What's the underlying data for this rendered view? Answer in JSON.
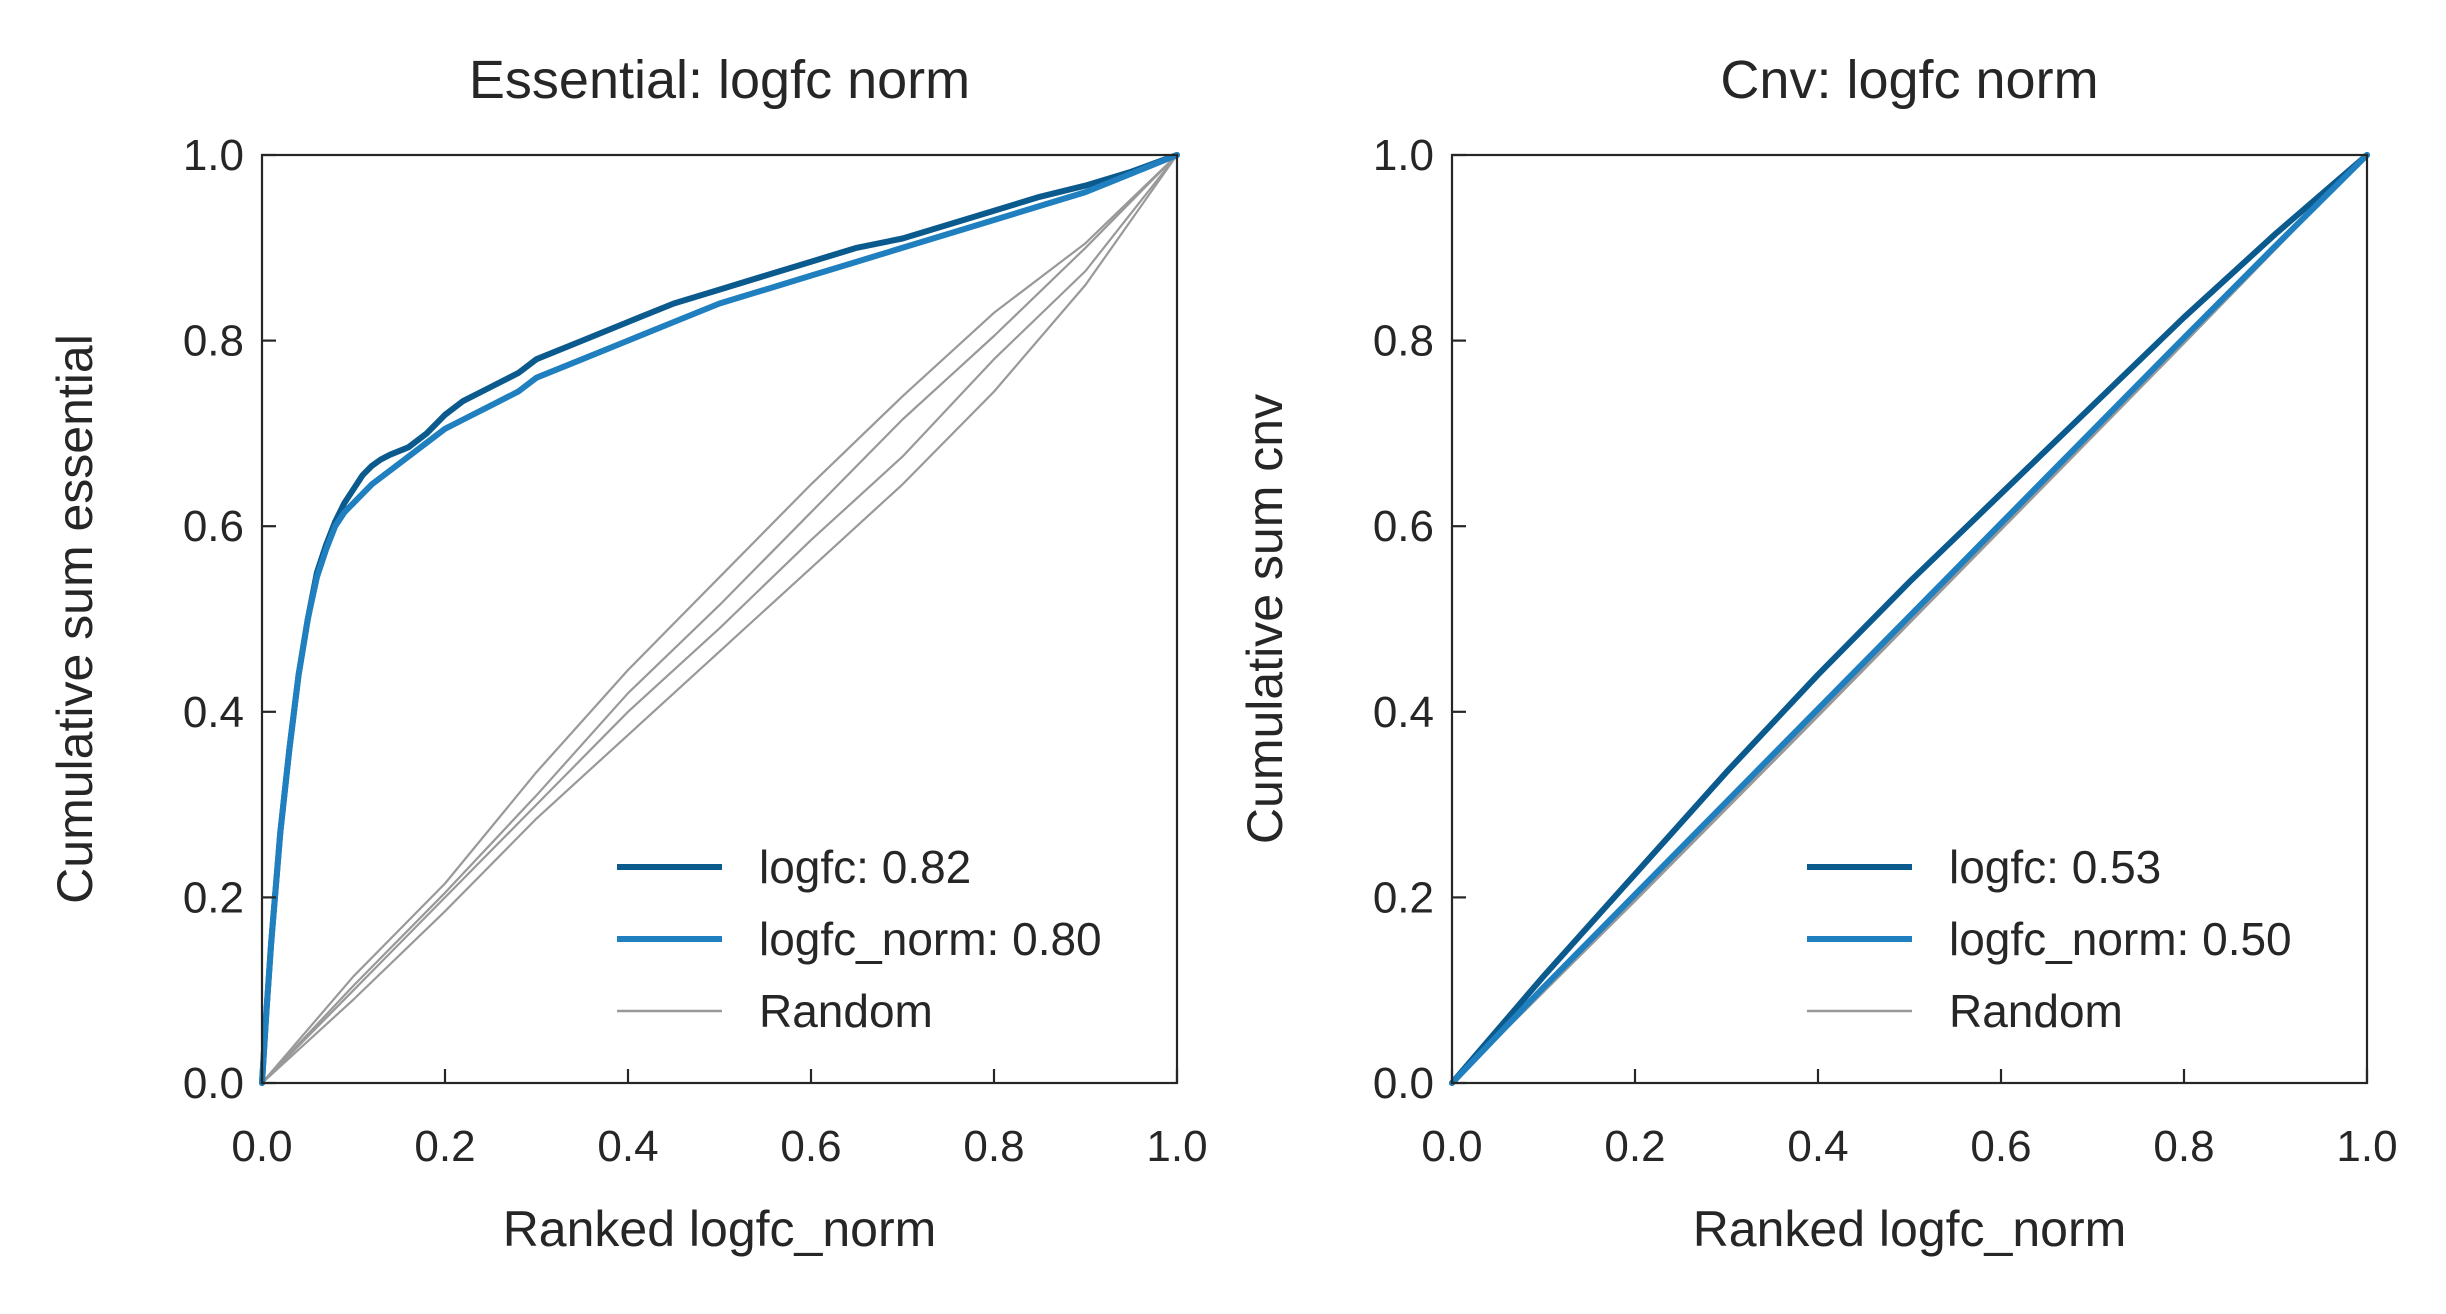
{
  "chart_data": [
    {
      "type": "line",
      "title": "Essential: logfc norm",
      "xlabel": "Ranked logfc_norm",
      "ylabel": "Cumulative sum essential",
      "xlim": [
        0,
        1
      ],
      "ylim": [
        0,
        1
      ],
      "xticks": [
        "0.0",
        "0.2",
        "0.4",
        "0.6",
        "0.8",
        "1.0"
      ],
      "yticks": [
        "0.0",
        "0.2",
        "0.4",
        "0.6",
        "0.8",
        "1.0"
      ],
      "grid": false,
      "legend_position": "lower-right",
      "series": [
        {
          "name": "logfc: 0.82",
          "color": "#0b5a8e",
          "x": [
            0,
            0.005,
            0.01,
            0.015,
            0.02,
            0.03,
            0.04,
            0.05,
            0.06,
            0.07,
            0.08,
            0.09,
            0.1,
            0.11,
            0.12,
            0.13,
            0.14,
            0.16,
            0.18,
            0.2,
            0.22,
            0.25,
            0.28,
            0.3,
            0.35,
            0.4,
            0.45,
            0.5,
            0.55,
            0.6,
            0.65,
            0.7,
            0.75,
            0.8,
            0.85,
            0.9,
            0.95,
            1.0
          ],
          "y": [
            0,
            0.08,
            0.15,
            0.21,
            0.27,
            0.36,
            0.44,
            0.5,
            0.55,
            0.58,
            0.605,
            0.625,
            0.64,
            0.655,
            0.665,
            0.672,
            0.677,
            0.685,
            0.7,
            0.72,
            0.735,
            0.75,
            0.765,
            0.78,
            0.8,
            0.82,
            0.84,
            0.855,
            0.87,
            0.885,
            0.9,
            0.91,
            0.925,
            0.94,
            0.955,
            0.967,
            0.982,
            1.0
          ]
        },
        {
          "name": "logfc_norm: 0.80",
          "color": "#1f7fbf",
          "x": [
            0,
            0.005,
            0.01,
            0.015,
            0.02,
            0.03,
            0.04,
            0.05,
            0.06,
            0.07,
            0.08,
            0.09,
            0.1,
            0.12,
            0.14,
            0.16,
            0.18,
            0.2,
            0.22,
            0.25,
            0.28,
            0.3,
            0.35,
            0.4,
            0.45,
            0.5,
            0.55,
            0.6,
            0.65,
            0.7,
            0.75,
            0.8,
            0.85,
            0.9,
            0.95,
            1.0
          ],
          "y": [
            0,
            0.08,
            0.15,
            0.21,
            0.27,
            0.36,
            0.44,
            0.5,
            0.545,
            0.575,
            0.6,
            0.615,
            0.625,
            0.645,
            0.66,
            0.675,
            0.69,
            0.705,
            0.715,
            0.73,
            0.745,
            0.76,
            0.78,
            0.8,
            0.82,
            0.84,
            0.855,
            0.87,
            0.885,
            0.9,
            0.915,
            0.93,
            0.945,
            0.96,
            0.98,
            1.0
          ]
        },
        {
          "name": "Random",
          "color": "#999999",
          "x": [
            0,
            0.1,
            0.2,
            0.3,
            0.4,
            0.5,
            0.6,
            0.7,
            0.8,
            0.9,
            1.0
          ],
          "y": [
            0,
            0.1,
            0.2,
            0.3,
            0.4,
            0.49,
            0.585,
            0.675,
            0.78,
            0.875,
            1.0
          ]
        },
        {
          "name": "Random",
          "color": "#999999",
          "x": [
            0,
            0.1,
            0.2,
            0.3,
            0.4,
            0.5,
            0.6,
            0.7,
            0.8,
            0.9,
            1.0
          ],
          "y": [
            0,
            0.115,
            0.215,
            0.335,
            0.445,
            0.545,
            0.645,
            0.74,
            0.83,
            0.905,
            1.0
          ]
        },
        {
          "name": "Random",
          "color": "#999999",
          "x": [
            0,
            0.1,
            0.2,
            0.3,
            0.4,
            0.5,
            0.6,
            0.7,
            0.8,
            0.9,
            1.0
          ],
          "y": [
            0,
            0.09,
            0.185,
            0.285,
            0.375,
            0.465,
            0.555,
            0.645,
            0.745,
            0.86,
            1.0
          ]
        },
        {
          "name": "Random",
          "color": "#999999",
          "x": [
            0,
            0.1,
            0.2,
            0.3,
            0.4,
            0.5,
            0.6,
            0.7,
            0.8,
            0.9,
            1.0
          ],
          "y": [
            0,
            0.105,
            0.205,
            0.31,
            0.42,
            0.515,
            0.615,
            0.715,
            0.805,
            0.9,
            1.0
          ]
        }
      ],
      "legend": [
        {
          "label": "logfc: 0.82",
          "color": "#0b5a8e",
          "style": "thick"
        },
        {
          "label": "logfc_norm: 0.80",
          "color": "#1f7fbf",
          "style": "thick"
        },
        {
          "label": "Random",
          "color": "#999999",
          "style": "thin"
        }
      ]
    },
    {
      "type": "line",
      "title": "Cnv: logfc norm",
      "xlabel": "Ranked logfc_norm",
      "ylabel": "Cumulative sum cnv",
      "xlim": [
        0,
        1
      ],
      "ylim": [
        0,
        1
      ],
      "xticks": [
        "0.0",
        "0.2",
        "0.4",
        "0.6",
        "0.8",
        "1.0"
      ],
      "yticks": [
        "0.0",
        "0.2",
        "0.4",
        "0.6",
        "0.8",
        "1.0"
      ],
      "grid": false,
      "legend_position": "lower-right",
      "series": [
        {
          "name": "logfc: 0.53",
          "color": "#0b5a8e",
          "x": [
            0,
            0.1,
            0.2,
            0.3,
            0.4,
            0.5,
            0.6,
            0.7,
            0.8,
            0.9,
            1.0
          ],
          "y": [
            0,
            0.115,
            0.225,
            0.335,
            0.44,
            0.54,
            0.635,
            0.73,
            0.825,
            0.915,
            1.0
          ]
        },
        {
          "name": "logfc_norm: 0.50",
          "color": "#1f7fbf",
          "x": [
            0,
            0.1,
            0.2,
            0.3,
            0.4,
            0.5,
            0.6,
            0.7,
            0.8,
            0.9,
            1.0
          ],
          "y": [
            0,
            0.103,
            0.203,
            0.303,
            0.403,
            0.503,
            0.603,
            0.703,
            0.803,
            0.902,
            1.0
          ]
        },
        {
          "name": "Random",
          "color": "#999999",
          "x": [
            0,
            0.2,
            0.4,
            0.6,
            0.8,
            1.0
          ],
          "y": [
            0,
            0.198,
            0.398,
            0.598,
            0.798,
            1.0
          ]
        },
        {
          "name": "Random",
          "color": "#999999",
          "x": [
            0,
            0.2,
            0.4,
            0.6,
            0.8,
            1.0
          ],
          "y": [
            0,
            0.202,
            0.402,
            0.602,
            0.801,
            1.0
          ]
        },
        {
          "name": "Random",
          "color": "#999999",
          "x": [
            0,
            0.2,
            0.4,
            0.6,
            0.8,
            1.0
          ],
          "y": [
            0,
            0.196,
            0.395,
            0.596,
            0.797,
            1.0
          ]
        },
        {
          "name": "Random",
          "color": "#999999",
          "x": [
            0,
            0.2,
            0.4,
            0.6,
            0.8,
            1.0
          ],
          "y": [
            0,
            0.2,
            0.4,
            0.6,
            0.8,
            1.0
          ]
        }
      ],
      "legend": [
        {
          "label": "logfc: 0.53",
          "color": "#0b5a8e",
          "style": "thick"
        },
        {
          "label": "logfc_norm: 0.50",
          "color": "#1f7fbf",
          "style": "thick"
        },
        {
          "label": "Random",
          "color": "#999999",
          "style": "thin"
        }
      ]
    }
  ]
}
